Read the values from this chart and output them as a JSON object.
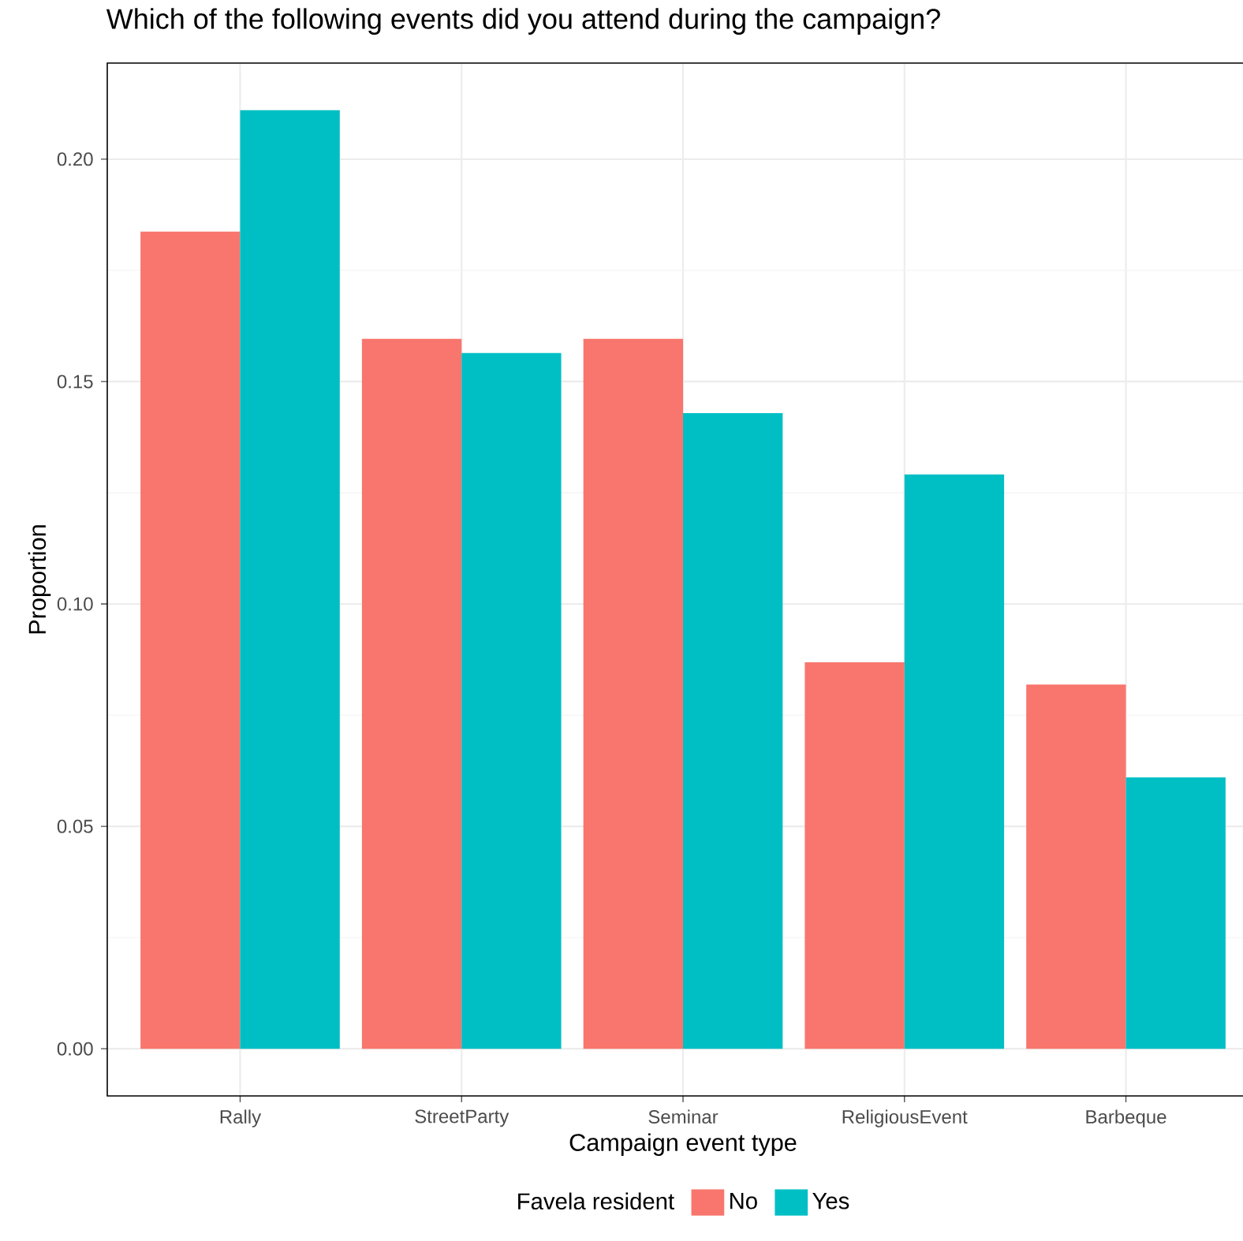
{
  "chart_data": {
    "type": "bar",
    "title": "Which of the following events did you attend during the campaign?",
    "xlabel": "Campaign event type",
    "ylabel": "Proportion",
    "legend_title": "Favela resident",
    "categories": [
      "Rally",
      "StreetParty",
      "Seminar",
      "ReligiousEvent",
      "Barbeque"
    ],
    "series": [
      {
        "name": "No",
        "color": "#f8766d",
        "values": [
          0.1837,
          0.1596,
          0.1596,
          0.0869,
          0.0819
        ]
      },
      {
        "name": "Yes",
        "color": "#00bfc4",
        "values": [
          0.211,
          0.1564,
          0.1429,
          0.1291,
          0.061
        ]
      }
    ],
    "ylim": [
      -0.0106,
      0.2216
    ],
    "yticks": [
      {
        "value": 0,
        "label": "0.00"
      },
      {
        "value": 0.05,
        "label": "0.05"
      },
      {
        "value": 0.1,
        "label": "0.10"
      },
      {
        "value": 0.15,
        "label": "0.15"
      },
      {
        "value": 0.2,
        "label": "0.20"
      }
    ],
    "grid": true,
    "legend": "bottom"
  }
}
